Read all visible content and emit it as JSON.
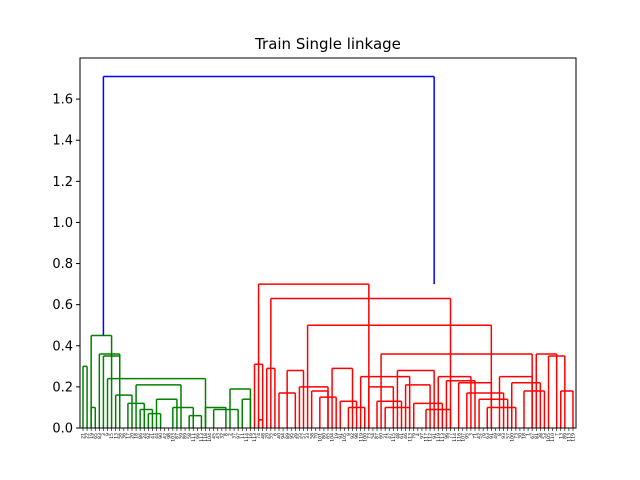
{
  "chart_data": {
    "type": "dendrogram",
    "title": "Train Single linkage",
    "xlabel": "",
    "ylabel": "",
    "ylim": [
      0,
      1.8
    ],
    "yticks": [
      0.0,
      0.2,
      0.4,
      0.6,
      0.8,
      1.0,
      1.2,
      1.4,
      1.6
    ],
    "ytick_labels": [
      "0.0",
      "0.2",
      "0.4",
      "0.6",
      "0.8",
      "1.0",
      "1.2",
      "1.4",
      "1.6"
    ],
    "grid": false,
    "legend": "none",
    "leaf_count": 121,
    "cluster_colors": {
      "cluster_1": "#008000",
      "cluster_2": "#ff0000",
      "root": "#0000ff"
    },
    "leaf_labels": [
      "21",
      "22",
      "19",
      "65",
      "83",
      "3",
      "9",
      "15",
      "13",
      "56",
      "36",
      "17",
      "20",
      "18",
      "86",
      "24",
      "92",
      "41",
      "44",
      "90",
      "42",
      "98",
      "103",
      "87",
      "59",
      "89",
      "58",
      "111",
      "66",
      "113",
      "118",
      "104",
      "45",
      "43",
      "32",
      "8",
      "2",
      "37",
      "97",
      "11",
      "114",
      "16",
      "113",
      "74",
      "48",
      "20",
      "55",
      "6",
      "40",
      "94",
      "89",
      "95",
      "26",
      "55",
      "57",
      "33",
      "58",
      "70",
      "101",
      "80",
      "65",
      "104",
      "19",
      "91",
      "105",
      "9",
      "92",
      "98",
      "119",
      "100",
      "73",
      "54",
      "87",
      "60",
      "31",
      "47",
      "115",
      "48",
      "61",
      "46",
      "113",
      "79",
      "4",
      "97",
      "117",
      "112",
      "91",
      "119",
      "113",
      "96",
      "77",
      "114",
      "116",
      "107",
      "95",
      "3",
      "71",
      "42",
      "76",
      "63",
      "91",
      "49",
      "8",
      "93",
      "57",
      "100",
      "73",
      "30",
      "18",
      "1",
      "67",
      "81",
      "38",
      "53",
      "105",
      "110",
      "7",
      "13",
      "89",
      "113",
      "119"
    ],
    "root_merge_height": 1.71,
    "cluster_1_top_height": 0.45,
    "cluster_2_top_height": 0.7,
    "cluster_1": {
      "leaf_range": [
        0,
        41
      ],
      "merges": [
        {
          "left": 0,
          "right": 1,
          "height": 0.3
        },
        {
          "left": 2,
          "right": 3,
          "height": 0.1
        },
        {
          "left": 4,
          "right": 9,
          "height": 0.36
        },
        {
          "left": 5,
          "right": 9,
          "height": 0.35
        },
        {
          "left": 8,
          "right": 12,
          "height": 0.16
        },
        {
          "left": 11,
          "right": 15,
          "height": 0.12
        },
        {
          "left": 14,
          "right": 17,
          "height": 0.09
        },
        {
          "left": 16,
          "right": 19,
          "height": 0.07
        },
        {
          "left": 13,
          "right": 24,
          "height": 0.21
        },
        {
          "left": 18,
          "right": 23,
          "height": 0.14
        },
        {
          "left": 22,
          "right": 27,
          "height": 0.1
        },
        {
          "left": 26,
          "right": 29,
          "height": 0.06
        },
        {
          "left": 30,
          "right": 35,
          "height": 0.1
        },
        {
          "left": 32,
          "right": 38,
          "height": 0.09
        },
        {
          "left": 36,
          "right": 41,
          "height": 0.19
        },
        {
          "left": 39,
          "right": 41,
          "height": 0.14
        },
        {
          "left": 6,
          "right": 30,
          "height": 0.24
        },
        {
          "left": 2,
          "right": 7,
          "height": 0.45
        }
      ]
    },
    "cluster_2": {
      "leaf_range": [
        42,
        120
      ],
      "merges": [
        {
          "left": 42,
          "right": 44,
          "height": 0.31
        },
        {
          "left": 43,
          "right": 44,
          "height": 0.04
        },
        {
          "left": 45,
          "right": 47,
          "height": 0.29
        },
        {
          "left": 48,
          "right": 52,
          "height": 0.17
        },
        {
          "left": 50,
          "right": 54,
          "height": 0.28
        },
        {
          "left": 53,
          "right": 60,
          "height": 0.2
        },
        {
          "left": 56,
          "right": 60,
          "height": 0.18
        },
        {
          "left": 58,
          "right": 62,
          "height": 0.15
        },
        {
          "left": 61,
          "right": 66,
          "height": 0.29
        },
        {
          "left": 63,
          "right": 67,
          "height": 0.13
        },
        {
          "left": 65,
          "right": 69,
          "height": 0.1
        },
        {
          "left": 68,
          "right": 80,
          "height": 0.25
        },
        {
          "left": 70,
          "right": 76,
          "height": 0.2
        },
        {
          "left": 72,
          "right": 78,
          "height": 0.13
        },
        {
          "left": 74,
          "right": 80,
          "height": 0.1
        },
        {
          "left": 77,
          "right": 86,
          "height": 0.28
        },
        {
          "left": 79,
          "right": 85,
          "height": 0.21
        },
        {
          "left": 81,
          "right": 88,
          "height": 0.12
        },
        {
          "left": 84,
          "right": 90,
          "height": 0.09
        },
        {
          "left": 87,
          "right": 95,
          "height": 0.25
        },
        {
          "left": 89,
          "right": 96,
          "height": 0.23
        },
        {
          "left": 92,
          "right": 100,
          "height": 0.22
        },
        {
          "left": 94,
          "right": 103,
          "height": 0.17
        },
        {
          "left": 97,
          "right": 104,
          "height": 0.14
        },
        {
          "left": 99,
          "right": 106,
          "height": 0.1
        },
        {
          "left": 102,
          "right": 110,
          "height": 0.25
        },
        {
          "left": 105,
          "right": 112,
          "height": 0.22
        },
        {
          "left": 108,
          "right": 113,
          "height": 0.18
        },
        {
          "left": 111,
          "right": 116,
          "height": 0.36
        },
        {
          "left": 114,
          "right": 118,
          "height": 0.35
        },
        {
          "left": 117,
          "right": 120,
          "height": 0.18
        },
        {
          "left": 73,
          "right": 110,
          "height": 0.36
        },
        {
          "left": 55,
          "right": 100,
          "height": 0.5
        },
        {
          "left": 46,
          "right": 90,
          "height": 0.63
        },
        {
          "left": 43,
          "right": 70,
          "height": 0.7
        }
      ]
    }
  }
}
